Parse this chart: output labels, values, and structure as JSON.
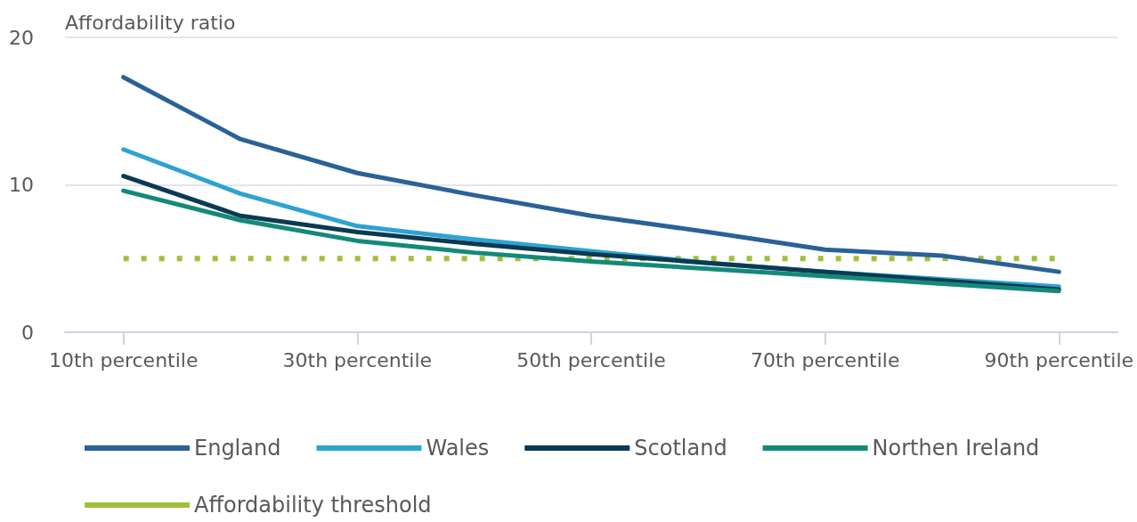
{
  "chart_data": {
    "type": "line",
    "ylabel": "Affordability ratio",
    "categories": [
      "10th percentile",
      null,
      "30th percentile",
      null,
      "50th percentile",
      null,
      "70th percentile",
      null,
      "90th percentile"
    ],
    "series": [
      {
        "name": "England",
        "color": "#2a6297",
        "values": [
          17.3,
          13.1,
          10.8,
          9.3,
          7.9,
          6.8,
          5.6,
          5.2,
          4.1
        ]
      },
      {
        "name": "Wales",
        "color": "#2ea3d3",
        "values": [
          12.4,
          9.4,
          7.2,
          6.3,
          5.5,
          4.7,
          4.1,
          3.6,
          3.1
        ]
      },
      {
        "name": "Scotland",
        "color": "#0b3a52",
        "values": [
          10.6,
          7.9,
          6.8,
          6.0,
          5.3,
          4.7,
          4.1,
          3.5,
          2.9
        ]
      },
      {
        "name": "Northen Ireland",
        "color": "#14897a",
        "values": [
          9.6,
          7.6,
          6.2,
          5.4,
          4.8,
          4.3,
          3.8,
          3.3,
          2.8
        ]
      },
      {
        "name": "Affordability threshold",
        "color": "#9fc03b",
        "line_style": "dotted",
        "values": [
          5,
          5,
          5,
          5,
          5,
          5,
          5,
          5,
          5
        ]
      }
    ],
    "ylim": [
      0,
      20
    ],
    "yticks": [
      0,
      10,
      20
    ],
    "grid": "y",
    "legend": "bottom",
    "marker": "none",
    "line_style": "solid"
  }
}
